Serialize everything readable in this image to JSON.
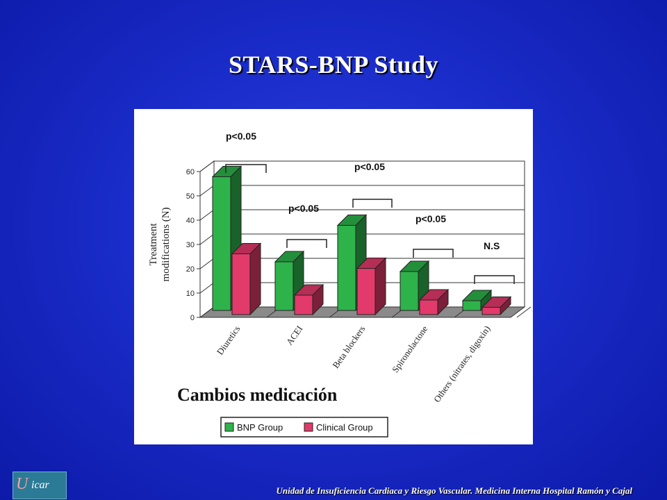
{
  "slide": {
    "title": "STARS-BNP Study",
    "footer": "Unidad de Insuficiencia Cardiaca y Riesgo Vascular. Medicina Interna Hospital Ramón y Cajal",
    "logo_text": "icar",
    "logo_mark": "U"
  },
  "chart_data": {
    "type": "bar",
    "three_d": true,
    "categories": [
      "Diuretics",
      "ACEI",
      "Beta blockers",
      "Spironolactone",
      "Others (nitrates, digoxin)"
    ],
    "series": [
      {
        "name": "BNP Group",
        "values": [
          55,
          20,
          35,
          16,
          4
        ],
        "color": "#2db34a"
      },
      {
        "name": "Clinical Group",
        "values": [
          25,
          8,
          19,
          6,
          3
        ],
        "color": "#e23a6a"
      }
    ],
    "ylabel_line1": "Treatment",
    "ylabel_line2": "modifications (N)",
    "ylim": [
      0,
      60
    ],
    "yticks": [
      0,
      10,
      20,
      30,
      40,
      50,
      60
    ],
    "grid": true,
    "legend_position": "bottom",
    "annotations": [
      "p<0.05",
      "p<0.05",
      "p<0.05",
      "p<0.05",
      "N.S"
    ],
    "overlay_label": "Cambios medicación"
  }
}
